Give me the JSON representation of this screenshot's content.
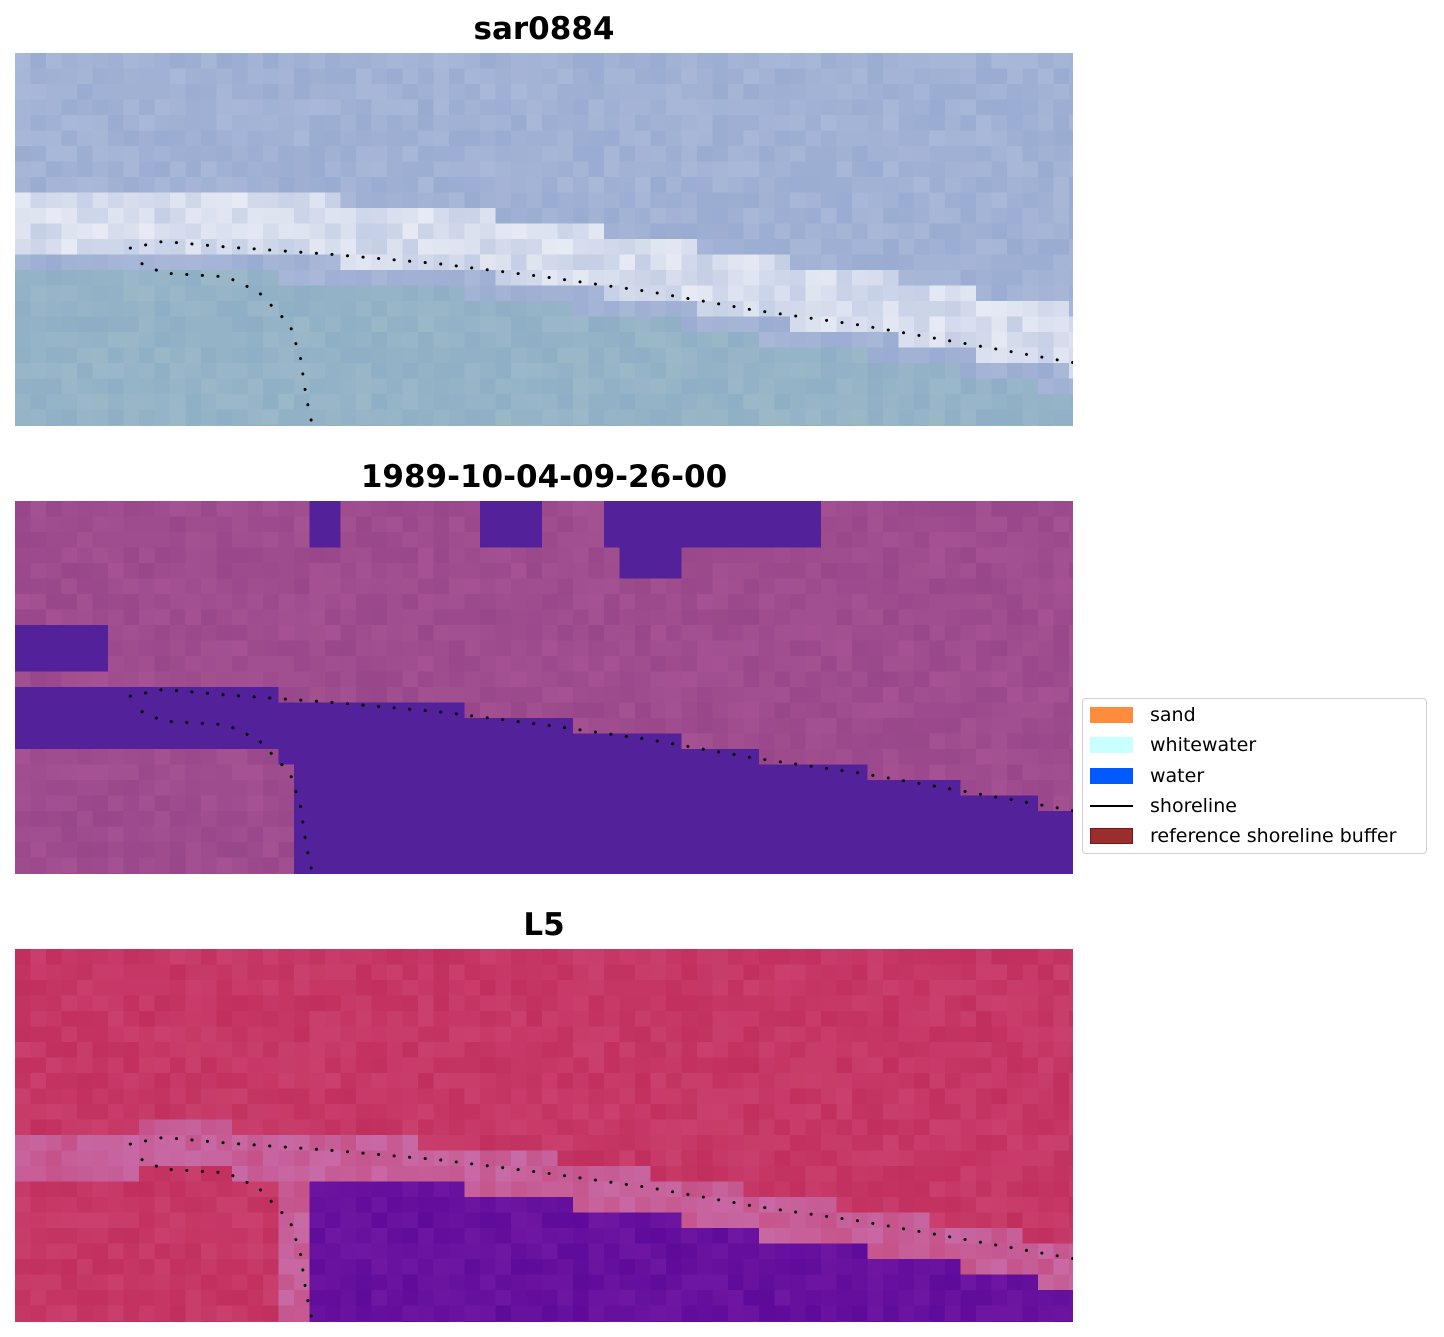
{
  "panels": [
    {
      "title": "sar0884"
    },
    {
      "title": "1989-10-04-09-26-00"
    },
    {
      "title": "L5"
    }
  ],
  "legend": {
    "items": [
      {
        "label": "sand",
        "color": "#ff8c3c",
        "kind": "patch"
      },
      {
        "label": "whitewater",
        "color": "#c8ffff",
        "kind": "patch"
      },
      {
        "label": "water",
        "color": "#005aff",
        "kind": "patch"
      },
      {
        "label": "shoreline",
        "color": "#000000",
        "kind": "line"
      },
      {
        "label": "reference shoreline buffer",
        "color": "#9b2d2d",
        "kind": "patch"
      }
    ]
  },
  "chart_data": {
    "type": "image",
    "colors": {
      "rgb_water": "#9bb8c8",
      "rgb_land": "#a9b8d8",
      "rgb_whitewater": "#eef0f8",
      "classified_land": "#98478a",
      "classified_water": "#53229a",
      "index_land": "#c12f5e",
      "index_water": "#5e0a9a",
      "index_edge": "#c86aa6"
    },
    "shorelines": [
      [
        [
          0.109,
          0.523
        ],
        [
          0.14,
          0.505
        ],
        [
          0.2,
          0.52
        ],
        [
          0.3,
          0.54
        ],
        [
          0.4,
          0.565
        ],
        [
          0.5,
          0.6
        ],
        [
          0.6,
          0.64
        ],
        [
          0.7,
          0.69
        ],
        [
          0.8,
          0.73
        ],
        [
          0.9,
          0.78
        ],
        [
          1.0,
          0.83
        ]
      ],
      [
        [
          0.12,
          0.565
        ],
        [
          0.14,
          0.59
        ],
        [
          0.2,
          0.6
        ],
        [
          0.23,
          0.64
        ],
        [
          0.26,
          0.73
        ],
        [
          0.27,
          0.82
        ],
        [
          0.275,
          0.92
        ],
        [
          0.28,
          0.985
        ]
      ]
    ]
  }
}
